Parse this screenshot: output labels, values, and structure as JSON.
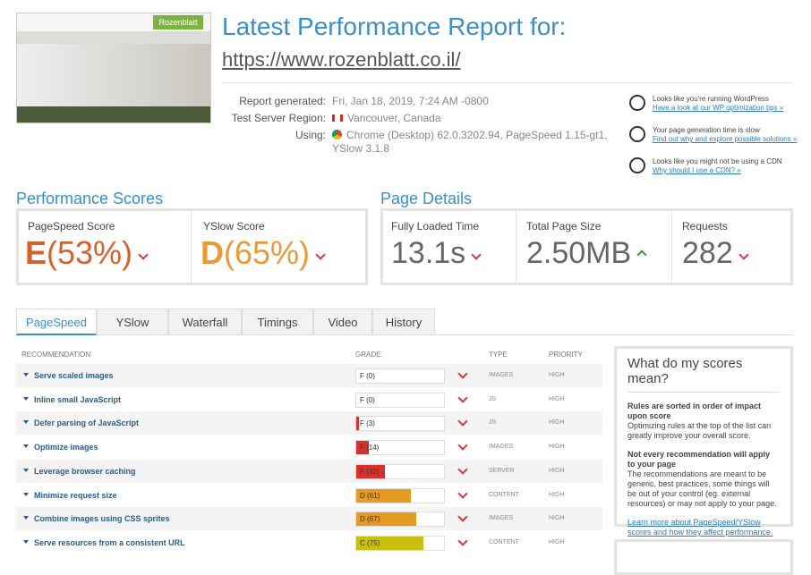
{
  "header": {
    "title": "Latest Performance Report for:",
    "url": "https://www.rozenblatt.co.il/"
  },
  "thumbnail": {
    "logo": "Rozenblatt"
  },
  "info": [
    {
      "label": "Report generated:",
      "value": "Fri, Jan 18, 2019, 7:24 AM -0800"
    },
    {
      "label": "Test Server Region:",
      "value": "Vancouver, Canada"
    },
    {
      "label": "Using:",
      "value": "Chrome (Desktop) 62.0.3202.94, PageSpeed 1.15-gt1, YSlow 3.1.8"
    }
  ],
  "tips": [
    {
      "text": "Looks like you're running WordPress",
      "link": "Have a look at our WP optimization tips »"
    },
    {
      "text": "Your page generation time is slow",
      "link": "Find out why and explore possible solutions »"
    },
    {
      "text": "Looks like you might not be using a CDN",
      "link": "Why should I use a CDN? »"
    }
  ],
  "performance": {
    "heading": "Performance Scores",
    "scores": [
      {
        "label": "PageSpeed Score",
        "grade": "E",
        "percent": "(53%)",
        "color": "#d6622a"
      },
      {
        "label": "YSlow Score",
        "grade": "D",
        "percent": "(65%)",
        "color": "#e99a35"
      }
    ]
  },
  "details": {
    "heading": "Page Details",
    "items": [
      {
        "label": "Fully Loaded Time",
        "value": "13.1s",
        "trend": "down"
      },
      {
        "label": "Total Page Size",
        "value": "2.50MB",
        "trend": "up"
      },
      {
        "label": "Requests",
        "value": "282",
        "trend": "down"
      }
    ]
  },
  "tabs": [
    "PageSpeed",
    "YSlow",
    "Waterfall",
    "Timings",
    "Video",
    "History"
  ],
  "table": {
    "columns": [
      "RECOMMENDATION",
      "GRADE",
      "TYPE",
      "PRIORITY"
    ],
    "rows": [
      {
        "name": "Serve scaled images",
        "grade": "F (0)",
        "score": 0,
        "color": "#d9302c",
        "type": "IMAGES",
        "priority": "HIGH"
      },
      {
        "name": "Inline small JavaScript",
        "grade": "F (0)",
        "score": 0,
        "color": "#d9302c",
        "type": "JS",
        "priority": "HIGH"
      },
      {
        "name": "Defer parsing of JavaScript",
        "grade": "F (3)",
        "score": 3,
        "color": "#d9302c",
        "type": "JS",
        "priority": "HIGH"
      },
      {
        "name": "Optimize images",
        "grade": "F (14)",
        "score": 14,
        "color": "#d9302c",
        "type": "IMAGES",
        "priority": "HIGH"
      },
      {
        "name": "Leverage browser caching",
        "grade": "F (32)",
        "score": 32,
        "color": "#d9302c",
        "type": "SERVER",
        "priority": "HIGH"
      },
      {
        "name": "Minimize request size",
        "grade": "D (61)",
        "score": 61,
        "color": "#e59a22",
        "type": "CONTENT",
        "priority": "HIGH"
      },
      {
        "name": "Combine images using CSS sprites",
        "grade": "D (67)",
        "score": 67,
        "color": "#e59a22",
        "type": "IMAGES",
        "priority": "HIGH"
      },
      {
        "name": "Serve resources from a consistent URL",
        "grade": "C (75)",
        "score": 75,
        "color": "#c9bf10",
        "type": "CONTENT",
        "priority": "HIGH"
      }
    ]
  },
  "sidebar": {
    "title": "What do my scores mean?",
    "blocks": [
      {
        "bold": "Rules are sorted in order of impact upon score",
        "text": "Optimizing rules at the top of the list can greatly improve your overall score."
      },
      {
        "bold": "Not every recommendation will apply to your page",
        "text": "The recommendations are meant to be generic, best practices, some things will be out of your control (eg. external resources) or may not apply to your page."
      }
    ],
    "link": "Learn more about PageSpeed/YSlow scores and how they affect performance."
  }
}
